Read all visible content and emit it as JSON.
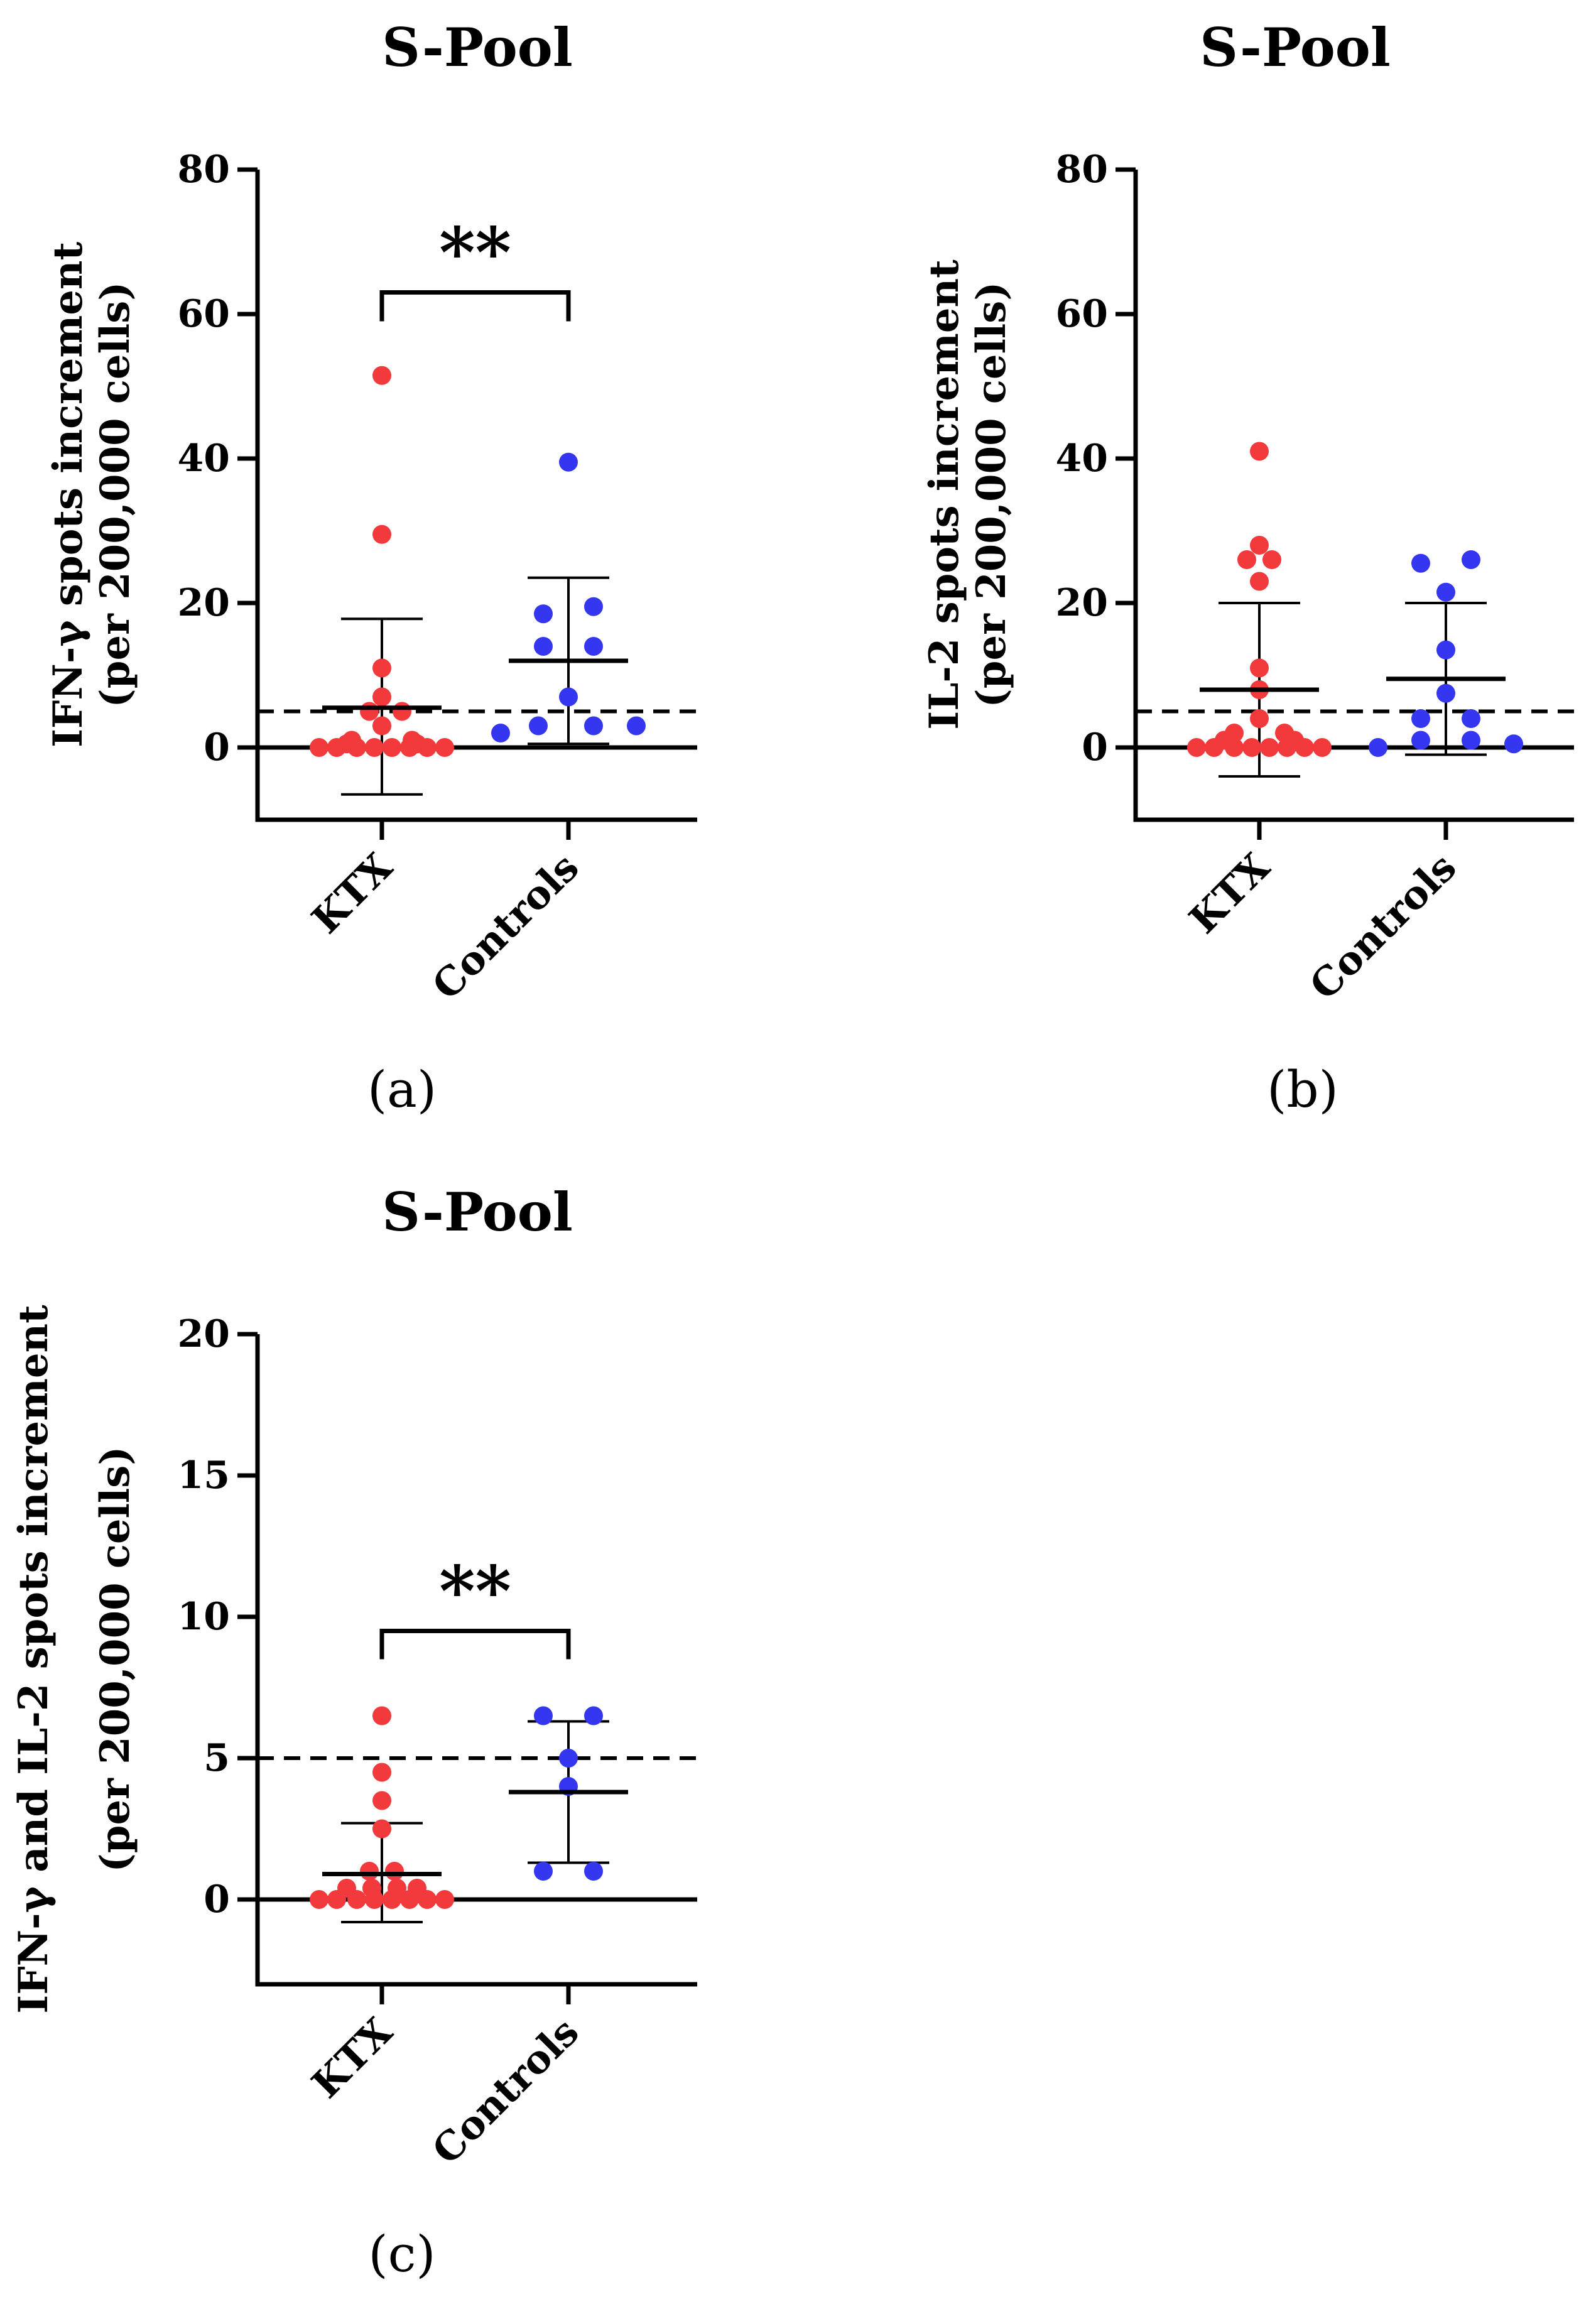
{
  "figure": {
    "colors": {
      "ktx": "#f2393c",
      "controls": "#3436f0",
      "axis": "#000000"
    }
  },
  "chart_data": [
    {
      "id": "a",
      "type": "scatter",
      "title": "S-Pool",
      "panel_label": "(a)",
      "ylabel_line1": "IFN-γ spots increment",
      "ylabel_line2": "(per 200,000 cells)",
      "categories": [
        "KTX",
        "Controls"
      ],
      "ylim": [
        -10,
        80
      ],
      "yticks": [
        0,
        20,
        40,
        60,
        80
      ],
      "tick_labels": [
        "0",
        "20",
        "40",
        "60",
        "80"
      ],
      "reference_line": 5,
      "significance": "**",
      "series": [
        {
          "name": "KTX",
          "points": [
            [
              0,
              51.5
            ],
            [
              0,
              29.5
            ],
            [
              0,
              11
            ],
            [
              0,
              7
            ],
            [
              -0.05,
              5
            ],
            [
              0.08,
              5
            ],
            [
              0,
              3
            ],
            [
              -0.12,
              1
            ],
            [
              0.12,
              1
            ],
            [
              -0.25,
              0
            ],
            [
              -0.18,
              0
            ],
            [
              -0.1,
              0
            ],
            [
              -0.03,
              0
            ],
            [
              0.04,
              0
            ],
            [
              0.11,
              0
            ],
            [
              0.18,
              0
            ],
            [
              0.25,
              0
            ],
            [
              -0.14,
              0.5
            ],
            [
              0.14,
              0.5
            ]
          ],
          "mean": 5.5,
          "sd_low": -6.5,
          "sd_high": 17.8
        },
        {
          "name": "Controls",
          "points": [
            [
              0,
              39.5
            ],
            [
              0.1,
              19.5
            ],
            [
              -0.1,
              18.5
            ],
            [
              -0.1,
              14
            ],
            [
              0.1,
              14
            ],
            [
              0,
              7
            ],
            [
              -0.27,
              2
            ],
            [
              -0.12,
              3
            ],
            [
              0.1,
              3
            ],
            [
              0.27,
              3
            ]
          ],
          "mean": 12,
          "sd_low": 0.5,
          "sd_high": 23.5
        }
      ]
    },
    {
      "id": "b",
      "type": "scatter",
      "title": "S-Pool",
      "panel_label": "(b)",
      "ylabel_line1": "IL-2 spots increment",
      "ylabel_line2": "(per 200,000 cells)",
      "categories": [
        "KTX",
        "Controls"
      ],
      "ylim": [
        -10,
        80
      ],
      "yticks": [
        0,
        20,
        40,
        60,
        80
      ],
      "tick_labels": [
        "0",
        "20",
        "40",
        "60",
        "80"
      ],
      "reference_line": 5,
      "significance": "",
      "series": [
        {
          "name": "KTX",
          "points": [
            [
              0,
              41
            ],
            [
              0,
              28
            ],
            [
              -0.05,
              26
            ],
            [
              0.05,
              26
            ],
            [
              0,
              23
            ],
            [
              0,
              11
            ],
            [
              0,
              8
            ],
            [
              0,
              4
            ],
            [
              -0.1,
              2
            ],
            [
              0.1,
              2
            ],
            [
              -0.25,
              0
            ],
            [
              -0.18,
              0
            ],
            [
              -0.1,
              0
            ],
            [
              -0.03,
              0
            ],
            [
              0.04,
              0
            ],
            [
              0.11,
              0
            ],
            [
              0.18,
              0
            ],
            [
              0.25,
              0
            ],
            [
              -0.14,
              1
            ],
            [
              0.14,
              1
            ]
          ],
          "mean": 8,
          "sd_low": -4,
          "sd_high": 20
        },
        {
          "name": "Controls",
          "points": [
            [
              -0.1,
              25.5
            ],
            [
              0.1,
              26
            ],
            [
              0,
              21.5
            ],
            [
              0,
              13.5
            ],
            [
              0,
              7.5
            ],
            [
              -0.1,
              4
            ],
            [
              0.1,
              4
            ],
            [
              -0.27,
              0
            ],
            [
              -0.1,
              1
            ],
            [
              0.1,
              1
            ],
            [
              0.27,
              0.5
            ]
          ],
          "mean": 9.5,
          "sd_low": -1,
          "sd_high": 20
        }
      ]
    },
    {
      "id": "c",
      "type": "scatter",
      "title": "S-Pool",
      "panel_label": "(c)",
      "ylabel_line1": "IFN-γ and  IL-2 spots increment",
      "ylabel_line2": "(per 200,000 cells)",
      "categories": [
        "KTX",
        "Controls"
      ],
      "ylim": [
        -3,
        20
      ],
      "yticks": [
        0,
        5,
        10,
        15,
        20
      ],
      "tick_labels": [
        "0",
        "5",
        "10",
        "15",
        "20"
      ],
      "reference_line": 5,
      "significance": "**",
      "series": [
        {
          "name": "KTX",
          "points": [
            [
              0,
              6.5
            ],
            [
              0,
              4.5
            ],
            [
              0,
              3.5
            ],
            [
              0,
              2.5
            ],
            [
              -0.05,
              1
            ],
            [
              0.05,
              1
            ],
            [
              -0.25,
              0
            ],
            [
              -0.18,
              0
            ],
            [
              -0.1,
              0
            ],
            [
              -0.03,
              0
            ],
            [
              0.04,
              0
            ],
            [
              0.11,
              0
            ],
            [
              0.18,
              0
            ],
            [
              0.25,
              0
            ],
            [
              -0.14,
              0.4
            ],
            [
              -0.04,
              0.4
            ],
            [
              0.06,
              0.4
            ],
            [
              0.14,
              0.4
            ]
          ],
          "mean": 0.9,
          "sd_low": -0.8,
          "sd_high": 2.7
        },
        {
          "name": "Controls",
          "points": [
            [
              -0.1,
              6.5
            ],
            [
              0.1,
              6.5
            ],
            [
              0,
              5
            ],
            [
              0,
              4
            ],
            [
              -0.1,
              1
            ],
            [
              0.1,
              1
            ]
          ],
          "mean": 3.8,
          "sd_low": 1.3,
          "sd_high": 6.3
        }
      ]
    }
  ]
}
